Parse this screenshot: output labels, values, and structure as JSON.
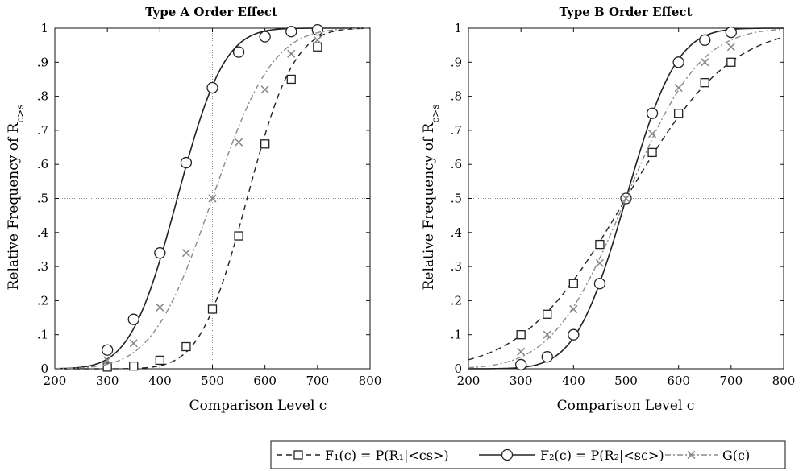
{
  "chart_data": [
    {
      "type": "line",
      "title": "Type A Order Effect",
      "xlabel": "Comparison Level c",
      "ylabel": "Relative Frequency of R",
      "ylabel_sub": "c>s",
      "xlim": [
        200,
        800
      ],
      "ylim": [
        0,
        1
      ],
      "x_ticks": [
        200,
        300,
        400,
        500,
        600,
        700,
        800
      ],
      "x_tick_labels": [
        "200",
        "300",
        "400",
        "500",
        "600",
        "700",
        "800"
      ],
      "y_ticks": [
        0,
        0.1,
        0.2,
        0.3,
        0.4,
        0.5,
        0.6,
        0.7,
        0.8,
        0.9,
        1
      ],
      "y_tick_labels": [
        "0",
        ".1",
        ".2",
        ".3",
        ".4",
        ".5",
        ".6",
        ".7",
        ".8",
        ".9",
        "1"
      ],
      "reference_lines": {
        "x": 500,
        "y": 0.5
      },
      "series": [
        {
          "key": "F1",
          "x": [
            300,
            350,
            400,
            450,
            500,
            550,
            600,
            650,
            700
          ],
          "values": [
            0.005,
            0.008,
            0.025,
            0.065,
            0.175,
            0.39,
            0.66,
            0.85,
            0.945
          ],
          "curve": {
            "mu": 566,
            "sigma": 70
          }
        },
        {
          "key": "F2",
          "x": [
            300,
            350,
            400,
            450,
            500,
            550,
            600,
            650,
            700
          ],
          "values": [
            0.055,
            0.145,
            0.34,
            0.605,
            0.825,
            0.93,
            0.975,
            0.99,
            0.995
          ],
          "curve": {
            "mu": 433,
            "sigma": 70
          }
        },
        {
          "key": "G",
          "x": [
            300,
            350,
            400,
            450,
            500,
            550,
            600,
            650,
            700
          ],
          "values": [
            0.025,
            0.075,
            0.18,
            0.34,
            0.5,
            0.665,
            0.82,
            0.925,
            0.965
          ],
          "curve": {
            "mu": 500,
            "sigma": 90
          }
        }
      ]
    },
    {
      "type": "line",
      "title": "Type B Order Effect",
      "xlabel": "Comparison Level c",
      "ylabel": "Relative Frequency of R",
      "ylabel_sub": "c>s",
      "xlim": [
        200,
        800
      ],
      "ylim": [
        0,
        1
      ],
      "x_ticks": [
        200,
        300,
        400,
        500,
        600,
        700,
        800
      ],
      "x_tick_labels": [
        "200",
        "300",
        "400",
        "500",
        "600",
        "700",
        "800"
      ],
      "y_ticks": [
        0,
        0.1,
        0.2,
        0.3,
        0.4,
        0.5,
        0.6,
        0.7,
        0.8,
        0.9,
        1
      ],
      "y_tick_labels": [
        "0",
        ".1",
        ".2",
        ".3",
        ".4",
        ".5",
        ".6",
        ".7",
        ".8",
        ".9",
        "1"
      ],
      "reference_lines": {
        "x": 500,
        "y": 0.5
      },
      "series": [
        {
          "key": "F1",
          "x": [
            300,
            350,
            400,
            450,
            500,
            550,
            600,
            650,
            700
          ],
          "values": [
            0.1,
            0.16,
            0.25,
            0.365,
            0.5,
            0.635,
            0.75,
            0.84,
            0.9
          ],
          "curve": {
            "mu": 500,
            "sigma": 155
          }
        },
        {
          "key": "F2",
          "x": [
            300,
            350,
            400,
            450,
            500,
            550,
            600,
            650,
            700
          ],
          "values": [
            0.012,
            0.035,
            0.1,
            0.25,
            0.5,
            0.75,
            0.9,
            0.965,
            0.988
          ],
          "curve": {
            "mu": 500,
            "sigma": 75
          }
        },
        {
          "key": "G",
          "x": [
            300,
            350,
            400,
            450,
            500,
            550,
            600,
            650,
            700
          ],
          "values": [
            0.05,
            0.1,
            0.175,
            0.31,
            0.5,
            0.69,
            0.825,
            0.9,
            0.945
          ],
          "curve": {
            "mu": 500,
            "sigma": 110
          }
        }
      ]
    }
  ],
  "legend": [
    {
      "key": "F1",
      "label": "F₁(c) = P(R₁|<cs>)",
      "line": "dashed",
      "marker": "square"
    },
    {
      "key": "F2",
      "label": "F₂(c) = P(R₂|<sc>)",
      "line": "solid",
      "marker": "circle"
    },
    {
      "key": "G",
      "label": "G(c)",
      "line": "dashdot",
      "marker": "x"
    }
  ],
  "colors": {
    "F1": "#222222",
    "F2": "#222222",
    "G": "#8a8a8a",
    "guide": "#8a8a8a"
  }
}
